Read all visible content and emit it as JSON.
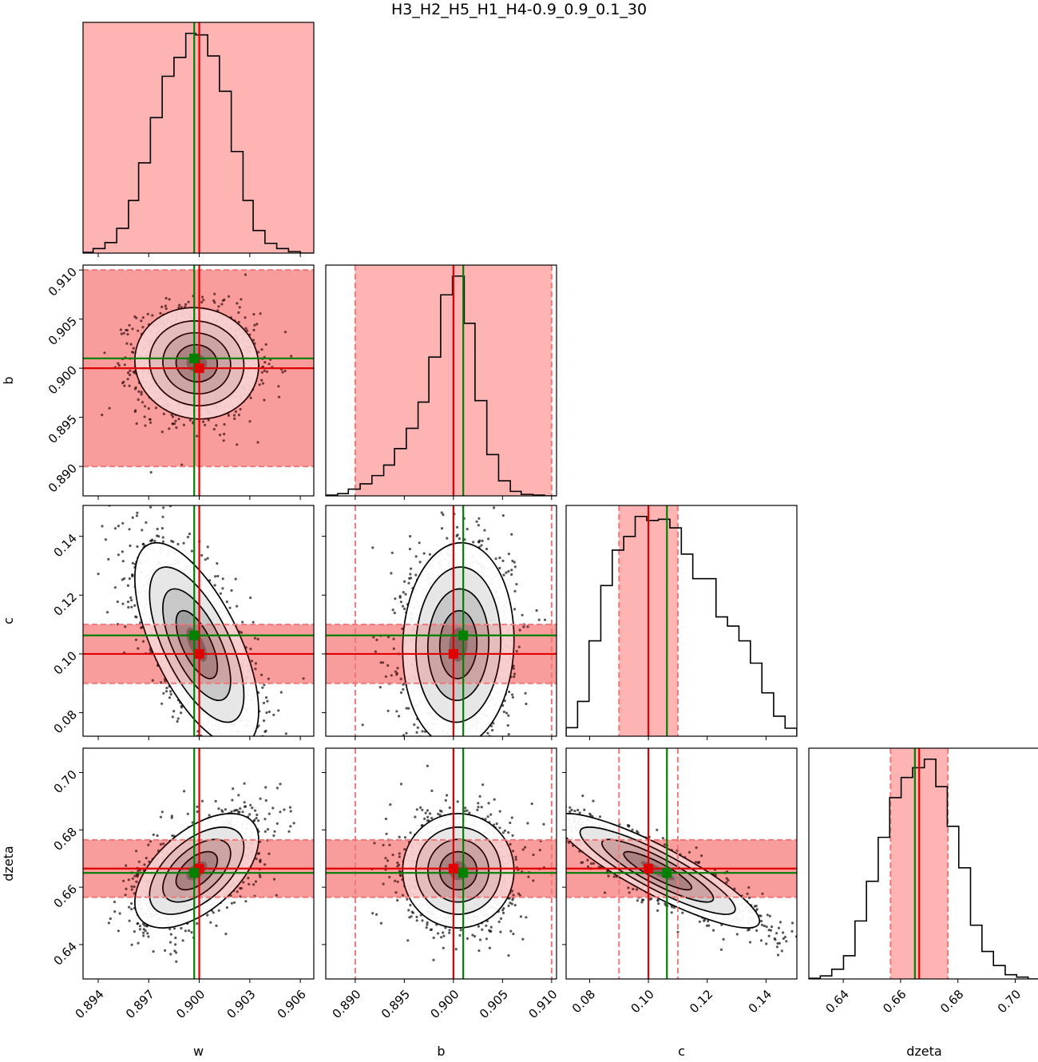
{
  "title": "H3_H2_H5_H1_H4-0.9_0.9_0.1_30",
  "colors": {
    "band_fill": "#ffb4b4",
    "band_edge": "#f07878",
    "truth": "#e00000",
    "estimate": "#008000",
    "points": "#111111",
    "contour": "#000000"
  },
  "chart_data": {
    "type": "corner",
    "title": "H3_H2_H5_H1_H4-0.9_0.9_0.1_30",
    "parameters": [
      {
        "key": "w",
        "label": "w",
        "range": [
          0.8931,
          0.9068
        ],
        "ticks": [
          0.894,
          0.897,
          0.9,
          0.903,
          0.906
        ],
        "tick_labels": [
          "0.894",
          "0.897",
          "0.900",
          "0.903",
          "0.906"
        ],
        "truth": 0.9,
        "estimate": 0.8997,
        "band": [
          0.88,
          0.92
        ],
        "sd": 0.00175,
        "hist_edges": [
          0.8931,
          0.8937,
          0.8944,
          0.8951,
          0.8958,
          0.8964,
          0.8971,
          0.8978,
          0.8985,
          0.8992,
          0.8998,
          0.9005,
          0.9012,
          0.9019,
          0.9026,
          0.9032,
          0.9039,
          0.9046,
          0.9053,
          0.906,
          0.9068
        ],
        "hist_counts": [
          1,
          6,
          14,
          33,
          70,
          120,
          180,
          235,
          260,
          292,
          290,
          262,
          215,
          135,
          70,
          30,
          13,
          6,
          2,
          0
        ]
      },
      {
        "key": "b",
        "label": "b",
        "range": [
          0.887,
          0.9105
        ],
        "ticks": [
          0.89,
          0.895,
          0.9,
          0.905,
          0.91
        ],
        "tick_labels": [
          "0.890",
          "0.895",
          "0.900",
          "0.905",
          "0.910"
        ],
        "truth": 0.9,
        "estimate": 0.901,
        "band": [
          0.89,
          0.91
        ],
        "sd": 0.0027,
        "hist_edges": [
          0.887,
          0.8882,
          0.8893,
          0.8905,
          0.8917,
          0.8929,
          0.894,
          0.8952,
          0.8964,
          0.8975,
          0.8987,
          0.8999,
          0.9011,
          0.9022,
          0.9034,
          0.9046,
          0.9058,
          0.9069,
          0.9081,
          0.9093,
          0.9105
        ],
        "hist_counts": [
          1,
          3,
          9,
          16,
          27,
          41,
          63,
          90,
          125,
          185,
          268,
          293,
          230,
          127,
          55,
          20,
          6,
          2,
          1,
          0
        ]
      },
      {
        "key": "c",
        "label": "c",
        "range": [
          0.072,
          0.1505
        ],
        "ticks": [
          0.08,
          0.1,
          0.12,
          0.14
        ],
        "tick_labels": [
          "0.08",
          "0.10",
          "0.12",
          "0.14"
        ],
        "truth": 0.1,
        "estimate": 0.1063,
        "band": [
          0.09,
          0.11
        ],
        "sd": 0.0165,
        "hist_edges": [
          0.072,
          0.0759,
          0.0798,
          0.0838,
          0.0877,
          0.0916,
          0.0955,
          0.0994,
          0.1034,
          0.1073,
          0.1112,
          0.1151,
          0.119,
          0.123,
          0.1269,
          0.1308,
          0.1347,
          0.1386,
          0.1426,
          0.1465,
          0.1505
        ],
        "hist_counts": [
          15,
          61,
          167,
          264,
          326,
          350,
          385,
          378,
          380,
          365,
          319,
          276,
          276,
          209,
          193,
          167,
          128,
          76,
          35,
          14
        ]
      },
      {
        "key": "dzeta",
        "label": "dzeta",
        "range": [
          0.628,
          0.7085
        ],
        "ticks": [
          0.64,
          0.66,
          0.68,
          0.7
        ],
        "tick_labels": [
          "0.64",
          "0.66",
          "0.68",
          "0.70"
        ],
        "truth": 0.6665,
        "estimate": 0.665,
        "band": [
          0.6565,
          0.6765
        ],
        "sd": 0.0095,
        "hist_edges": [
          0.628,
          0.632,
          0.636,
          0.6401,
          0.6441,
          0.6481,
          0.6522,
          0.6562,
          0.6602,
          0.6642,
          0.6683,
          0.6723,
          0.6763,
          0.6803,
          0.6844,
          0.6884,
          0.6924,
          0.6965,
          0.7005,
          0.7045,
          0.7085
        ],
        "hist_counts": [
          1,
          5,
          16,
          38,
          95,
          160,
          232,
          297,
          330,
          346,
          360,
          315,
          250,
          182,
          88,
          45,
          22,
          7,
          3,
          0
        ]
      }
    ],
    "correlations": {
      "w_b": -0.05,
      "w_c": -0.65,
      "w_dzeta": 0.55,
      "b_c": 0.05,
      "b_dzeta": 0.0,
      "c_dzeta": -0.88
    }
  }
}
